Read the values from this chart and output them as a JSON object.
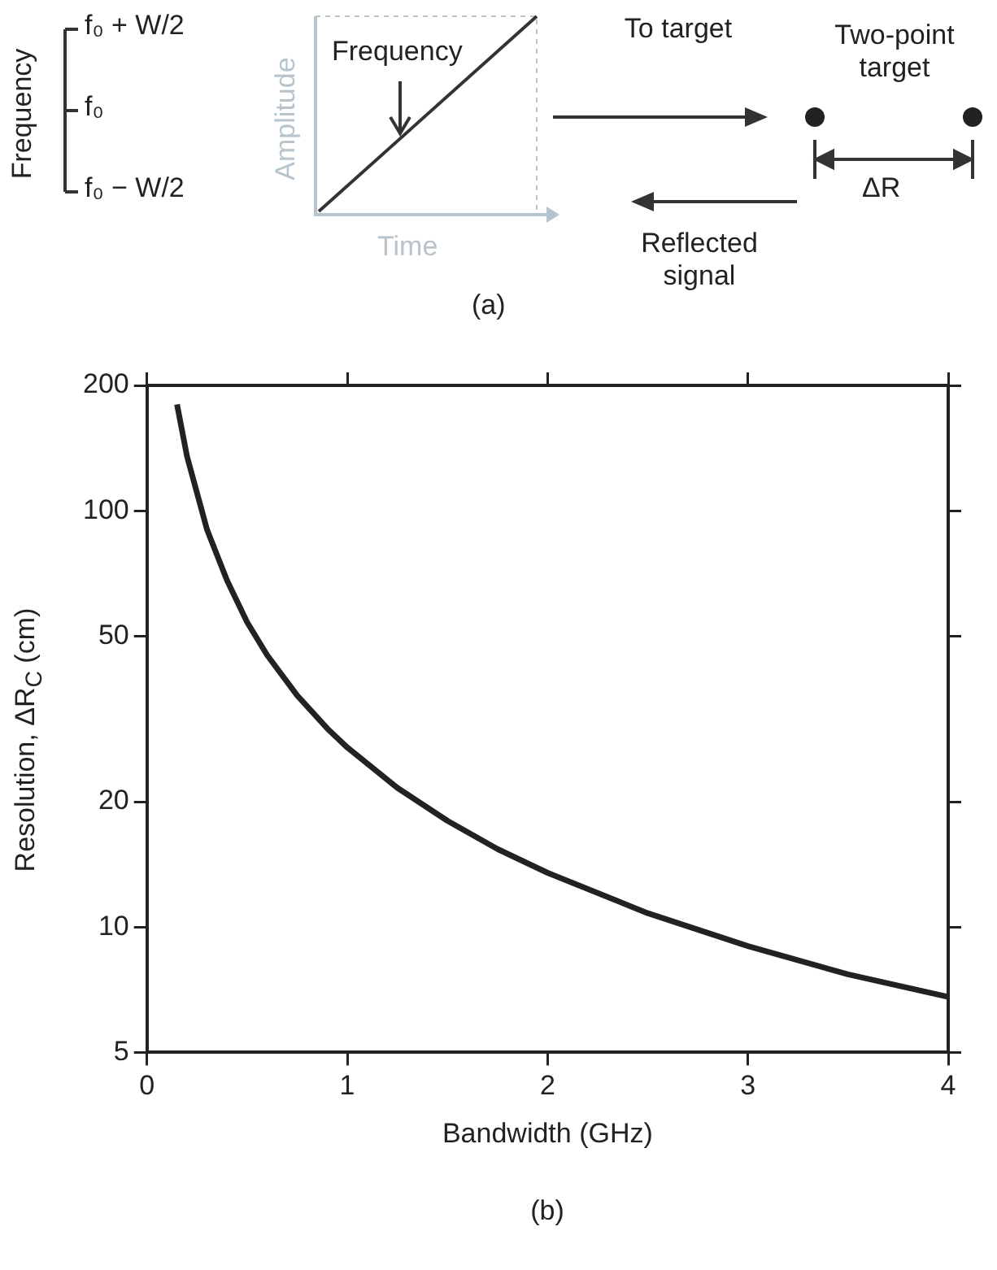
{
  "chart_data": [
    {
      "type": "other",
      "annotations": [
        "Frequency",
        "f₀ + W/2",
        "f₀",
        "f₀ − W/2",
        "Amplitude",
        "Frequency",
        "Time",
        "To target",
        "Two-point target",
        "ΔR",
        "Reflected signal",
        "(a)"
      ]
    },
    {
      "type": "line",
      "xlabel": "Bandwidth (GHz)",
      "ylabel": "Resolution, ΔR$_{C}$ (cm)",
      "annotations": [
        "(b)"
      ],
      "series": [
        {
          "color": "#222222",
          "x": [
            0.15,
            0.2,
            0.3,
            0.4,
            0.5,
            0.6,
            0.75,
            0.9,
            1,
            1.25,
            1.5,
            1.75,
            2,
            2.5,
            3,
            3.5,
            4
          ],
          "values": [
            180,
            135,
            90,
            68,
            54,
            45,
            36,
            30,
            27,
            21.6,
            18,
            15.4,
            13.5,
            10.8,
            9,
            7.7,
            6.8
          ]
        }
      ],
      "xlim": [
        0,
        4
      ],
      "xticks": [
        0,
        1,
        2,
        3,
        4
      ],
      "ylim": [
        5,
        200
      ],
      "yticks": [
        5,
        10,
        20,
        50,
        100,
        200
      ],
      "log": "y",
      "grid": false,
      "marker": "none",
      "line_style": "solid",
      "legend": false
    }
  ]
}
